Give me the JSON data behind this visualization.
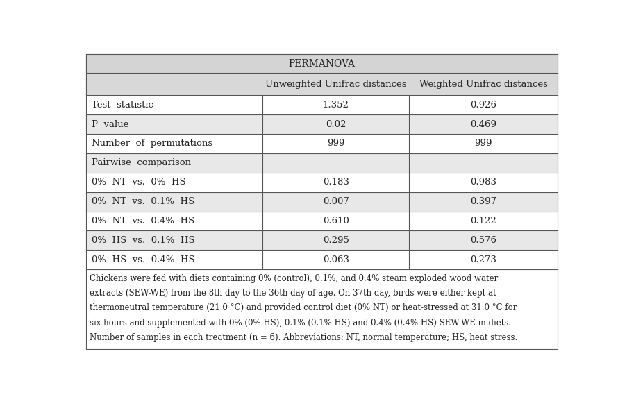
{
  "title": "PERMANOVA",
  "col_headers": [
    "",
    "Unweighted Unifrac distances",
    "Weighted Unifrac distances"
  ],
  "rows": [
    {
      "label": "Test  statistic",
      "unweighted": "1.352",
      "weighted": "0.926",
      "bg": "#ffffff"
    },
    {
      "label": "P  value",
      "unweighted": "0.02",
      "weighted": "0.469",
      "bg": "#e8e8e8"
    },
    {
      "label": "Number  of  permutations",
      "unweighted": "999",
      "weighted": "999",
      "bg": "#ffffff"
    },
    {
      "label": "Pairwise  comparison",
      "unweighted": "",
      "weighted": "",
      "bg": "#e8e8e8"
    },
    {
      "label": "0%  NT  vs.  0%  HS",
      "unweighted": "0.183",
      "weighted": "0.983",
      "bg": "#ffffff"
    },
    {
      "label": "0%  NT  vs.  0.1%  HS",
      "unweighted": "0.007",
      "weighted": "0.397",
      "bg": "#e8e8e8"
    },
    {
      "label": "0%  NT  vs.  0.4%  HS",
      "unweighted": "0.610",
      "weighted": "0.122",
      "bg": "#ffffff"
    },
    {
      "label": "0%  HS  vs.  0.1%  HS",
      "unweighted": "0.295",
      "weighted": "0.576",
      "bg": "#e8e8e8"
    },
    {
      "label": "0%  HS  vs.  0.4%  HS",
      "unweighted": "0.063",
      "weighted": "0.273",
      "bg": "#ffffff"
    }
  ],
  "footer_lines": [
    "Chickens were fed with diets containing 0% (control), 0.1%, and 0.4% steam exploded wood water",
    "extracts (SEW-WE) from the 8th day to the 36th day of age. On 37th day, birds were either kept at",
    "thermoneutral temperature (21.0 °C) and provided control diet (0% NT) or heat-stressed at 31.0 °C for",
    "six hours and supplemented with 0% (0% HS), 0.1% (0.1% HS) and 0.4% (0.4% HS) SEW-WE in diets.",
    "Number of samples in each treatment (n = 6). Abbreviations: NT, normal temperature; HS, heat stress."
  ],
  "title_bg": "#d4d4d4",
  "header_bg": "#d8d8d8",
  "border_color": "#555555",
  "text_color": "#222222",
  "font_size": 9.5,
  "title_font_size": 10,
  "footer_font_size": 8.5
}
